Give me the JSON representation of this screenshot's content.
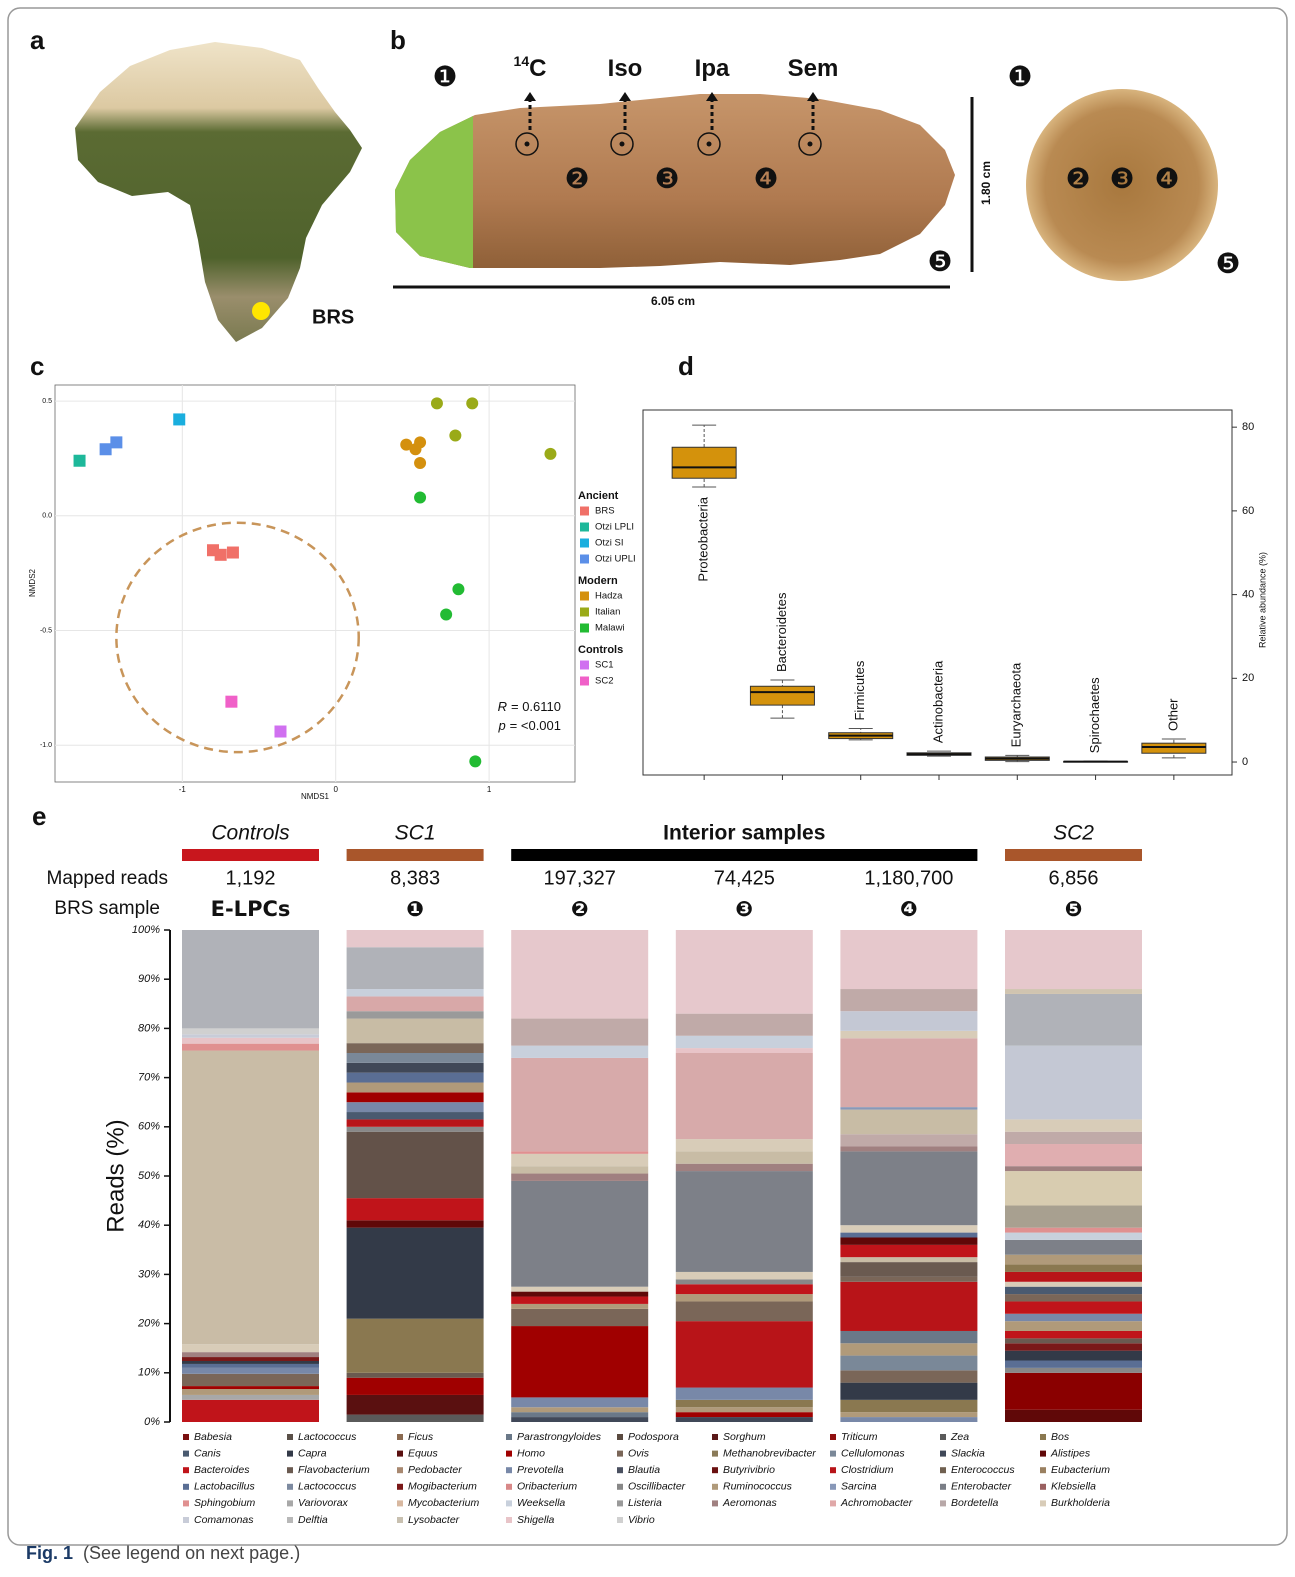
{
  "figure": {
    "panel_labels": [
      "a",
      "b",
      "c",
      "d",
      "e"
    ],
    "a": {
      "site_label": "BRS"
    },
    "b": {
      "sampling_labels": [
        {
          "sup": "14",
          "text": "C"
        },
        {
          "text": "Iso"
        },
        {
          "text": "Ipa"
        },
        {
          "text": "Sem"
        }
      ],
      "photo_markers": [
        "❶",
        "❷",
        "❸",
        "❹",
        "❺"
      ],
      "section_markers": [
        "❶",
        "❷",
        "❸",
        "❹",
        "❺"
      ],
      "length_label": "6.05 cm",
      "height_label": "1.80 cm"
    },
    "caption": {
      "label": "Fig. 1",
      "text": "(See legend on next page.)"
    }
  },
  "chart_data": [
    {
      "type": "scatter",
      "xlabel": "NMDS1",
      "ylabel": "NMDS2",
      "xlim": [
        -1.83,
        1.56
      ],
      "ylim": [
        -1.16,
        0.57
      ],
      "xticks": [
        -1,
        0,
        1
      ],
      "yticks": [
        {
          "value": -1,
          "label": "-1.0"
        },
        -0.5,
        {
          "value": 0,
          "label": "0.0"
        },
        0.5
      ],
      "grid": true,
      "ellipse": {
        "cx": -0.64,
        "cy": -0.53,
        "rx": 0.79,
        "ry": 0.5,
        "color": "#c8955a"
      },
      "annotations": [
        {
          "symbol": "R",
          "text": "= 0.6110"
        },
        {
          "symbol": "p",
          "text": "= <0.001"
        }
      ],
      "groups": [
        {
          "name": "Ancient",
          "marker": "square",
          "series": [
            {
              "name": "BRS",
              "color": "#f07068",
              "x": [
                -0.8,
                -0.75,
                -0.67
              ],
              "y": [
                -0.15,
                -0.17,
                -0.16
              ]
            },
            {
              "name": "Otzi LPLI",
              "color": "#1db89a",
              "x": [
                -1.67
              ],
              "y": [
                0.24
              ]
            },
            {
              "name": "Otzi SI",
              "color": "#1aaede",
              "x": [
                -1.02
              ],
              "y": [
                0.42
              ]
            },
            {
              "name": "Otzi UPLI",
              "color": "#5b8fe8",
              "x": [
                -1.5,
                -1.43
              ],
              "y": [
                0.29,
                0.32
              ]
            }
          ]
        },
        {
          "name": "Modern",
          "marker": "circle",
          "series": [
            {
              "name": "Hadza",
              "color": "#d4900e",
              "x": [
                0.46,
                0.52,
                0.55,
                0.55
              ],
              "y": [
                0.31,
                0.29,
                0.32,
                0.23
              ]
            },
            {
              "name": "Italian",
              "color": "#9aaa18",
              "x": [
                0.66,
                0.89,
                0.78,
                1.4
              ],
              "y": [
                0.49,
                0.49,
                0.35,
                0.27
              ]
            },
            {
              "name": "Malawi",
              "color": "#22bb33",
              "x": [
                0.55,
                0.8,
                0.72,
                0.91
              ],
              "y": [
                0.08,
                -0.32,
                -0.43,
                -1.07
              ]
            }
          ]
        },
        {
          "name": "Controls",
          "marker": "square",
          "series": [
            {
              "name": "SC1",
              "color": "#d070f0",
              "x": [
                -0.36
              ],
              "y": [
                -0.94
              ]
            },
            {
              "name": "SC2",
              "color": "#f060c8",
              "x": [
                -0.68
              ],
              "y": [
                -0.81
              ]
            }
          ]
        }
      ]
    },
    {
      "type": "box",
      "ylabel": "Relative abundance (%)",
      "color": "#d4920c",
      "ylim": [
        -3.1,
        84.1
      ],
      "yticks": [
        0,
        20,
        40,
        60,
        80
      ],
      "categories": [
        "Proteobacteria",
        "Bacteroidetes",
        "Firmicutes",
        "Actinobacteria",
        "Euryarchaeota",
        "Spirochaetes",
        "Other"
      ],
      "boxes": [
        {
          "min": 65.7,
          "q1": 67.8,
          "median": 70.4,
          "q3": 75.2,
          "max": 80.5
        },
        {
          "min": 10.5,
          "q1": 13.6,
          "median": 16.7,
          "q3": 18.1,
          "max": 19.6
        },
        {
          "min": 5.3,
          "q1": 5.6,
          "median": 6.3,
          "q3": 7.0,
          "max": 8.0
        },
        {
          "min": 1.4,
          "q1": 1.6,
          "median": 1.9,
          "q3": 2.2,
          "max": 2.6
        },
        {
          "min": 0.1,
          "q1": 0.4,
          "median": 0.8,
          "q3": 1.2,
          "max": 1.6
        },
        {
          "min": 0,
          "q1": 0.05,
          "median": 0.1,
          "q3": 0.1,
          "max": 0.2
        },
        {
          "min": 1.0,
          "q1": 2.1,
          "median": 3.6,
          "q3": 4.5,
          "max": 5.5
        }
      ]
    },
    {
      "type": "stacked_bar",
      "ylabel": "Reads (%)",
      "ylim": [
        0,
        100
      ],
      "yticks": [
        {
          "value": 0,
          "label": "0%"
        },
        {
          "value": 10,
          "label": "10%"
        },
        {
          "value": 20,
          "label": "20%"
        },
        {
          "value": 30,
          "label": "30%"
        },
        {
          "value": 40,
          "label": "40%"
        },
        {
          "value": 50,
          "label": "50%"
        },
        {
          "value": 60,
          "label": "60%"
        },
        {
          "value": 70,
          "label": "70%"
        },
        {
          "value": 80,
          "label": "80%"
        },
        {
          "value": 90,
          "label": "90%"
        },
        {
          "value": 100,
          "label": "100%"
        }
      ],
      "row_labels": [
        "Mapped reads",
        "BRS sample"
      ],
      "groups": [
        {
          "name": "Controls",
          "color": "#c8161d",
          "italic": true,
          "bars": [
            {
              "mapped_reads": "1,192",
              "sample": "E-LPCs",
              "values": [
                4.5,
                1,
                1.2,
                0.6,
                2.5,
                1.2,
                0.8,
                0.6,
                0.8,
                1,
                1.6,
                59.7,
                1.4,
                1.2,
                0.7,
                1.2,
                20
              ],
              "colors": [
                "#c0141a",
                "#a8a8a8",
                "#b09a7a",
                "#a00000",
                "#7a6658",
                "#7888a8",
                "#5a6e94",
                "#333a48",
                "#7a1818",
                "#a08080",
                "#d8ccb8",
                "#c9bca6",
                "#e09090",
                "#e8c4c8",
                "#c8ccd8",
                "#d0d0d0",
                "#b0b2b8"
              ]
            }
          ]
        },
        {
          "name": "SC1",
          "color": "#a9562b",
          "italic": true,
          "bars": [
            {
              "mapped_reads": "8,383",
              "sample": "❶",
              "values": [
                1.5,
                4,
                3.5,
                1,
                11,
                18.5,
                1.5,
                4.5,
                13.5,
                1,
                1.5,
                1.5,
                2,
                2,
                2,
                2,
                2,
                2,
                2,
                5,
                1.5,
                3,
                1.5,
                8.5,
                3.5
              ],
              "colors": [
                "#5a5a5a",
                "#5a1010",
                "#a00000",
                "#6a5a50",
                "#8a7850",
                "#333a48",
                "#600808",
                "#c0141a",
                "#635249",
                "#888888",
                "#b81418",
                "#4a5a70",
                "#7888a8",
                "#a00000",
                "#b09a7a",
                "#5a6e94",
                "#404858",
                "#7a8898",
                "#7a6658",
                "#c8bca5",
                "#9a9a9a",
                "#d8a8a8",
                "#c8d0dc",
                "#b0b2b8",
                "#e6c8cc"
              ]
            }
          ]
        },
        {
          "name": "Interior samples",
          "color": "#000000",
          "italic": false,
          "bars": [
            {
              "mapped_reads": "197,327",
              "sample": "❷",
              "values": [
                1,
                1,
                1,
                2,
                14.5,
                3.5,
                1,
                1.5,
                1,
                1,
                21.5,
                1.5,
                1.5,
                2.5,
                0.5,
                19,
                2.5,
                5.5,
                18
              ],
              "colors": [
                "#404858",
                "#6a7888",
                "#b09a7a",
                "#7888a8",
                "#a00000",
                "#7a6658",
                "#b09a7a",
                "#c0141a",
                "#600808",
                "#d8ccb8",
                "#7d8088",
                "#a08080",
                "#c8bca5",
                "#d8ccb8",
                "#e09090",
                "#d7aaaa",
                "#c8d0dc",
                "#c0aaa8",
                "#e6c8cc"
              ]
            },
            {
              "mapped_reads": "74,425",
              "sample": "❸",
              "values": [
                1,
                1,
                1,
                1.5,
                2.5,
                13.5,
                4,
                1.5,
                2,
                1,
                1.5,
                20.5,
                1.5,
                2.5,
                2.5,
                17.5,
                1,
                2.5,
                4.5,
                17
              ],
              "colors": [
                "#404858",
                "#a00000",
                "#b09a7a",
                "#8a7850",
                "#7888a8",
                "#b81418",
                "#7a6658",
                "#b09a7a",
                "#c0141a",
                "#888888",
                "#d8ccb8",
                "#7d8088",
                "#a08080",
                "#c8bca5",
                "#d8ccb8",
                "#d7aaaa",
                "#e8c4c8",
                "#c8d0dc",
                "#c0aaa8",
                "#e6c8cc"
              ]
            },
            {
              "mapped_reads": "1,180,700",
              "sample": "❹",
              "values": [
                1,
                1,
                2.5,
                3.5,
                2.5,
                3,
                2.5,
                2.5,
                10,
                1,
                3,
                1,
                2.5,
                1.5,
                1,
                1.5,
                15,
                1,
                2.5,
                5,
                0.5,
                14,
                1.5,
                4,
                4.5,
                12
              ],
              "colors": [
                "#7888a8",
                "#b09a7a",
                "#8a7850",
                "#333a48",
                "#7a6658",
                "#7a8898",
                "#b09a7a",
                "#6a7888",
                "#b81418",
                "#7a6658",
                "#6a5a50",
                "#c8bca5",
                "#c0141a",
                "#600808",
                "#5a6e94",
                "#d8ccb8",
                "#7d8088",
                "#a08080",
                "#c0aaa8",
                "#c8bca5",
                "#8898b8",
                "#d7aaaa",
                "#d8ccb8",
                "#c4c8d4",
                "#c0aaa8",
                "#e6c8cc"
              ]
            }
          ]
        },
        {
          "name": "SC2",
          "color": "#a9562b",
          "italic": true,
          "bars": [
            {
              "mapped_reads": "6,856",
              "sample": "❺",
              "values": [
                2.5,
                7.5,
                1,
                1.5,
                2,
                1.5,
                1,
                1.5,
                2,
                1.5,
                2.5,
                1.5,
                1.5,
                1,
                2,
                1.5,
                2,
                3,
                1.5,
                1,
                4.5,
                7,
                1,
                4.5,
                2.5,
                2.5,
                15,
                10.5,
                1,
                12
              ],
              "colors": [
                "#600808",
                "#8a0000",
                "#888888",
                "#5a6e94",
                "#333a48",
                "#7a1818",
                "#6a5a50",
                "#c0141a",
                "#b09a7a",
                "#7888a8",
                "#c0141a",
                "#7a6658",
                "#4a5a70",
                "#d8ccb8",
                "#b81418",
                "#8a7850",
                "#b09a7a",
                "#7d8088",
                "#c8d0dc",
                "#e09090",
                "#a8a090",
                "#d8ccb0",
                "#a08080",
                "#e0aeb0",
                "#c0aaa8",
                "#d8ccb8",
                "#c4c8d4",
                "#b0b2b8",
                "#d0c4b0",
                "#e6c8cc"
              ]
            }
          ]
        }
      ],
      "legend": [
        {
          "name": "Babesia",
          "color": "#7a1010"
        },
        {
          "name": "Canis",
          "color": "#4a5a70"
        },
        {
          "name": "Bacteroides",
          "color": "#c0141a"
        },
        {
          "name": "Lactobacillus",
          "color": "#5a6e94"
        },
        {
          "name": "Sphingobium",
          "color": "#e09090"
        },
        {
          "name": "Comamonas",
          "color": "#c8ccd8"
        },
        {
          "name": "Lactococcus",
          "color": "#5a5048"
        },
        {
          "name": "Capra",
          "color": "#333a48"
        },
        {
          "name": "Flavobacterium",
          "color": "#6a5a50"
        },
        {
          "name": "Lactococcus",
          "color": "#7d8aa0"
        },
        {
          "name": "Variovorax",
          "color": "#a8a8a8"
        },
        {
          "name": "Delftia",
          "color": "#b8b8b8"
        },
        {
          "name": "Ficus",
          "color": "#8a6a50"
        },
        {
          "name": "Equus",
          "color": "#5a1010"
        },
        {
          "name": "Pedobacter",
          "color": "#a88870"
        },
        {
          "name": "Mogibacterium",
          "color": "#7a1818"
        },
        {
          "name": "Mycobacterium",
          "color": "#d8b8a0"
        },
        {
          "name": "Lysobacter",
          "color": "#c8c0b0"
        },
        {
          "name": "Parastrongyloides",
          "color": "#6a7888"
        },
        {
          "name": "Homo",
          "color": "#a00000"
        },
        {
          "name": "Prevotella",
          "color": "#7888a8"
        },
        {
          "name": "Oribacterium",
          "color": "#d88888"
        },
        {
          "name": "Weeksella",
          "color": "#c8d0dc"
        },
        {
          "name": "Shigella",
          "color": "#e8c4c8"
        },
        {
          "name": "Podospora",
          "color": "#5a4a40"
        },
        {
          "name": "Ovis",
          "color": "#7a6658"
        },
        {
          "name": "Blautia",
          "color": "#4a5060"
        },
        {
          "name": "Oscillibacter",
          "color": "#888888"
        },
        {
          "name": "Listeria",
          "color": "#9a9a9a"
        },
        {
          "name": "Vibrio",
          "color": "#d0d0d0"
        },
        {
          "name": "Sorghum",
          "color": "#5a1818"
        },
        {
          "name": "Methanobrevibacter",
          "color": "#8a7a58"
        },
        {
          "name": "Butyrivibrio",
          "color": "#6a1010"
        },
        {
          "name": "Ruminococcus",
          "color": "#b09a7a"
        },
        {
          "name": "Aeromonas",
          "color": "#a08080"
        },
        {
          "name": "Triticum",
          "color": "#901010"
        },
        {
          "name": "Cellulomonas",
          "color": "#7a8898"
        },
        {
          "name": "Clostridium",
          "color": "#b81418"
        },
        {
          "name": "Sarcina",
          "color": "#8898b8"
        },
        {
          "name": "Achromobacter",
          "color": "#e0a8a8"
        },
        {
          "name": "Zea",
          "color": "#5a5a5a"
        },
        {
          "name": "Slackia",
          "color": "#404858"
        },
        {
          "name": "Enterococcus",
          "color": "#706050"
        },
        {
          "name": "Enterobacter",
          "color": "#7a7e86"
        },
        {
          "name": "Bordetella",
          "color": "#b8a8a8"
        },
        {
          "name": "Bos",
          "color": "#8a7850"
        },
        {
          "name": "Alistipes",
          "color": "#600808"
        },
        {
          "name": "Eubacterium",
          "color": "#9a8060"
        },
        {
          "name": "Klebsiella",
          "color": "#9a6060"
        },
        {
          "name": "Burkholderia",
          "color": "#d8ccb8"
        }
      ]
    }
  ]
}
